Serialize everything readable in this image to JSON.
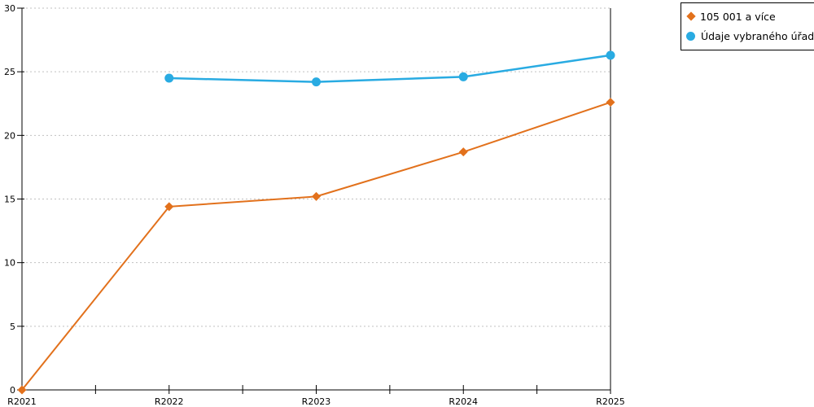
{
  "chart_data": {
    "type": "line",
    "title": "",
    "xlabel": "",
    "ylabel": "",
    "categories": [
      "R2021",
      "R2022",
      "R2023",
      "R2024",
      "R2025"
    ],
    "series": [
      {
        "name": "105 001 a více",
        "color": "#E2711C",
        "marker": "diamond",
        "values": [
          0,
          14.4,
          15.2,
          18.7,
          22.6
        ]
      },
      {
        "name": "Údaje vybraného úřadu",
        "color": "#29ABE2",
        "marker": "circle",
        "values": [
          null,
          24.5,
          24.2,
          24.6,
          26.3
        ]
      }
    ],
    "ylim": [
      0,
      30
    ],
    "ytick_step": 5,
    "ytick_labels": [
      "0",
      "5",
      "10",
      "15",
      "20",
      "25",
      "30"
    ],
    "grid": "horizontal-dashed",
    "grid_color": "#C0C0C0",
    "axis_color": "#000000",
    "text_color": "#000000",
    "background": "#FFFFFF",
    "legend_position": "top-right"
  }
}
